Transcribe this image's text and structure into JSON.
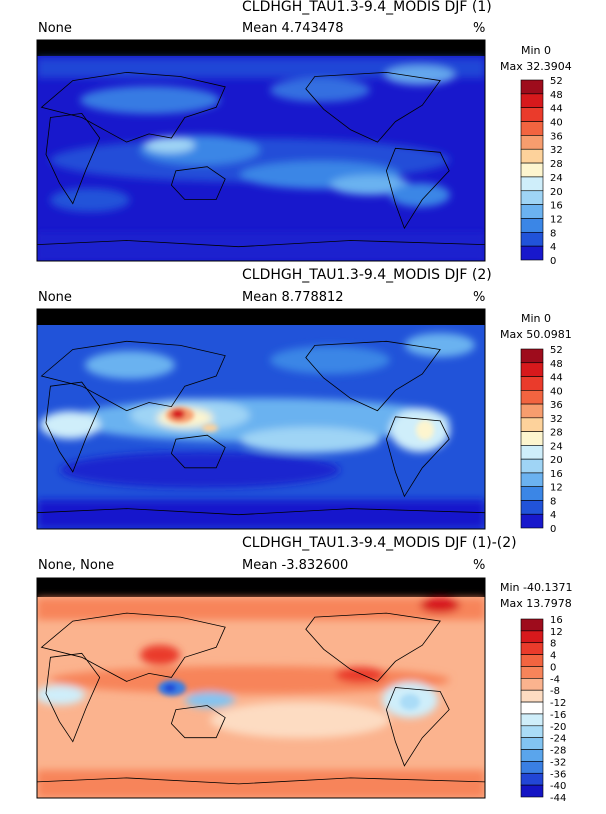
{
  "chart_data": [
    {
      "type": "heatmap",
      "title": "CLDHGH_TAU1.3-9.4_MODIS DJF (1)",
      "left_label": "None",
      "mean_label": "Mean 4.743478",
      "units": "%",
      "min_label": "Min 0",
      "max_label": "Max 32.3904",
      "colorbar_levels": [
        52,
        48,
        44,
        40,
        36,
        32,
        28,
        24,
        20,
        16,
        12,
        8,
        4,
        0
      ],
      "colors": [
        "#9e0c1c",
        "#d7191c",
        "#ea3b2b",
        "#f26440",
        "#f79d6e",
        "#fdd29b",
        "#fdf5cf",
        "#cfeefa",
        "#9fd4f5",
        "#6bb2f0",
        "#3b86e6",
        "#2153d9",
        "#1818cc"
      ]
    },
    {
      "type": "heatmap",
      "title": "CLDHGH_TAU1.3-9.4_MODIS DJF (2)",
      "left_label": "None",
      "mean_label": "Mean 8.778812",
      "units": "%",
      "min_label": "Min 0",
      "max_label": "Max 50.0981",
      "colorbar_levels": [
        52,
        48,
        44,
        40,
        36,
        32,
        28,
        24,
        20,
        16,
        12,
        8,
        4,
        0
      ],
      "colors": [
        "#9e0c1c",
        "#d7191c",
        "#ea3b2b",
        "#f26440",
        "#f79d6e",
        "#fdd29b",
        "#fdf5cf",
        "#cfeefa",
        "#9fd4f5",
        "#6bb2f0",
        "#3b86e6",
        "#2153d9",
        "#1818cc"
      ]
    },
    {
      "type": "heatmap",
      "title": "CLDHGH_TAU1.3-9.4_MODIS DJF (1)-(2)",
      "left_label": "None, None",
      "mean_label": "Mean -3.832600",
      "units": "%",
      "min_label": "Min -40.1371",
      "max_label": "Max 13.7978",
      "colorbar_levels": [
        16,
        12,
        8,
        4,
        0,
        -4,
        -8,
        -12,
        -16,
        -20,
        -24,
        -28,
        -32,
        -36,
        -40,
        -44
      ],
      "colors": [
        "#9e0c1c",
        "#d7191c",
        "#ea3b2b",
        "#f26440",
        "#f7845a",
        "#fbb38e",
        "#fddcc2",
        "#ffffff",
        "#cfeefa",
        "#aadcf7",
        "#82c4f2",
        "#5aa5ec",
        "#3a7fe3",
        "#2246d6",
        "#1414c4"
      ]
    }
  ]
}
